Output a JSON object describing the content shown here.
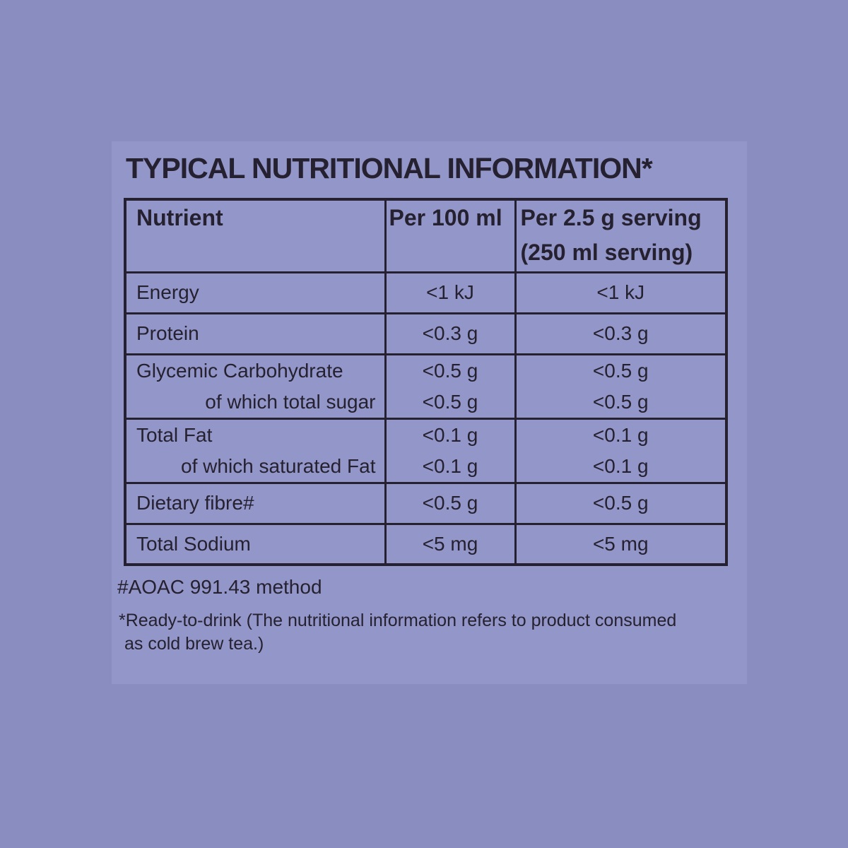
{
  "colors": {
    "outer_bg": "#8a8dc0",
    "panel_bg": "#9396c9",
    "ink": "#262130"
  },
  "title": "TYPICAL NUTRITIONAL INFORMATION*",
  "table": {
    "headers": {
      "nutrient": "Nutrient",
      "per_100ml": "Per 100 ml",
      "per_serving_line1": "Per 2.5 g serving",
      "per_serving_line2": "(250 ml serving)"
    },
    "rows": [
      {
        "nutrient": [
          "Energy"
        ],
        "per_100ml": [
          "<1 kJ"
        ],
        "per_serving": [
          "<1 kJ"
        ]
      },
      {
        "nutrient": [
          "Protein"
        ],
        "per_100ml": [
          "<0.3 g"
        ],
        "per_serving": [
          "<0.3 g"
        ]
      },
      {
        "nutrient": [
          "Glycemic Carbohydrate",
          "of which total sugar"
        ],
        "per_100ml": [
          "<0.5 g",
          "<0.5 g"
        ],
        "per_serving": [
          "<0.5 g",
          "<0.5 g"
        ]
      },
      {
        "nutrient": [
          "Total Fat",
          "of which saturated Fat"
        ],
        "per_100ml": [
          "<0.1 g",
          "<0.1 g"
        ],
        "per_serving": [
          "<0.1 g",
          "<0.1 g"
        ]
      },
      {
        "nutrient": [
          "Dietary fibre#"
        ],
        "per_100ml": [
          "<0.5 g"
        ],
        "per_serving": [
          "<0.5 g"
        ]
      },
      {
        "nutrient": [
          "Total Sodium"
        ],
        "per_100ml": [
          "<5 mg"
        ],
        "per_serving": [
          "<5 mg"
        ]
      }
    ]
  },
  "footnotes": {
    "method": "#AOAC 991.43 method",
    "ready_line1": "*Ready-to-drink (The nutritional information refers to product consumed",
    "ready_line2": "as cold brew tea.)"
  }
}
